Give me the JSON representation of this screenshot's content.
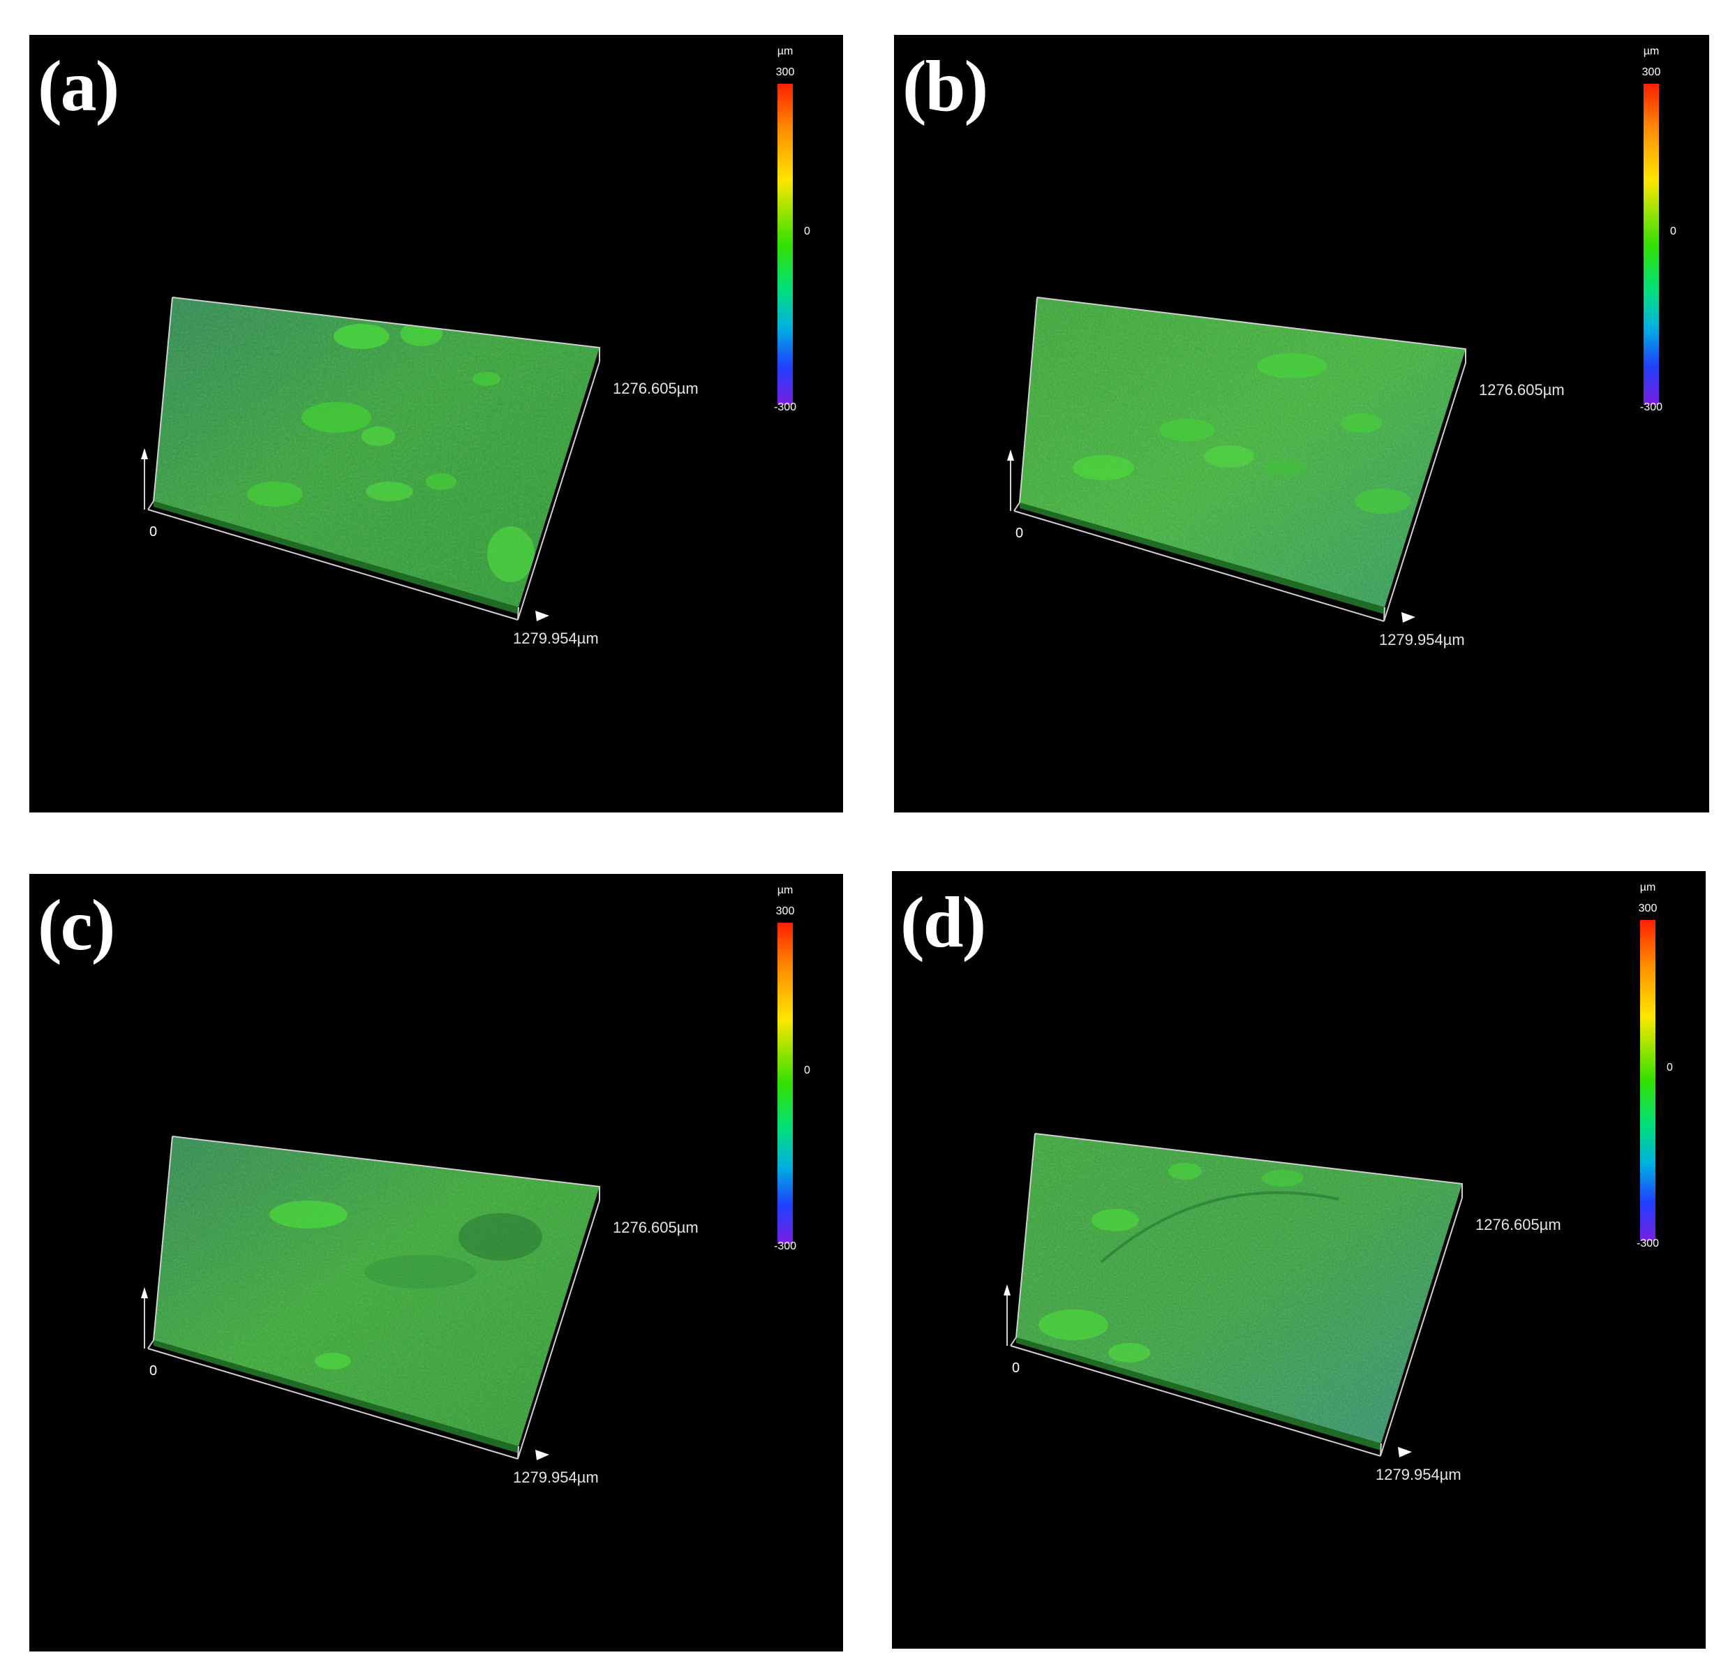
{
  "panels": [
    {
      "id": "a",
      "label": "(a)",
      "scale_unit": "µm",
      "scale_max": "300",
      "scale_mid": "0",
      "scale_min": "-300",
      "origin": "0",
      "y_extent": "1276.605µm",
      "x_extent": "1279.954µm"
    },
    {
      "id": "b",
      "label": "(b)",
      "scale_unit": "µm",
      "scale_max": "300",
      "scale_mid": "0",
      "scale_min": "-300",
      "origin": "0",
      "y_extent": "1276.605µm",
      "x_extent": "1279.954µm"
    },
    {
      "id": "c",
      "label": "(c)",
      "scale_unit": "µm",
      "scale_max": "300",
      "scale_mid": "0",
      "scale_min": "-300",
      "origin": "0",
      "y_extent": "1276.605µm",
      "x_extent": "1279.954µm"
    },
    {
      "id": "d",
      "label": "(d)",
      "scale_unit": "µm",
      "scale_max": "300",
      "scale_mid": "0",
      "scale_min": "-300",
      "origin": "0",
      "y_extent": "1276.605µm",
      "x_extent": "1279.954µm"
    }
  ],
  "colors": {
    "background": "#000000",
    "surface_green": "#2e9a2e",
    "surface_teal": "#2f8f70",
    "colorbar": [
      "#ff2000",
      "#ff8c00",
      "#ffe600",
      "#33e000",
      "#00e07a",
      "#00b0e0",
      "#2040ff",
      "#7a1ee0"
    ]
  }
}
